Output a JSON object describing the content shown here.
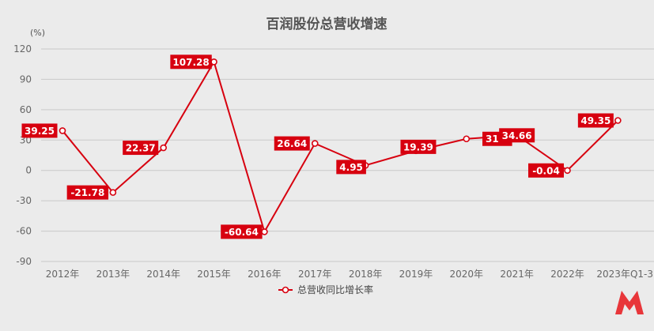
{
  "chart_data": {
    "type": "line",
    "title": "百润股份总营收增速",
    "unit": "(%)",
    "xlabel": "",
    "ylabel": "",
    "categories": [
      "2012年",
      "2013年",
      "2014年",
      "2015年",
      "2016年",
      "2017年",
      "2018年",
      "2019年",
      "2020年",
      "2021年",
      "2022年",
      "2023年Q1-3"
    ],
    "ylim": [
      -90,
      120
    ],
    "yticks": [
      120,
      90,
      60,
      30,
      0,
      -30,
      -60,
      -90
    ],
    "grid": true,
    "legend_position": "bottom",
    "series": [
      {
        "name": "总营收同比增长率",
        "color": "#d7000f",
        "values": [
          39.25,
          -21.78,
          22.37,
          107.28,
          -60.64,
          26.64,
          4.95,
          19.39,
          31.2,
          34.66,
          -0.04,
          49.35
        ]
      }
    ]
  },
  "logo": {
    "name": "logo-icon",
    "color": "#e8363a"
  }
}
